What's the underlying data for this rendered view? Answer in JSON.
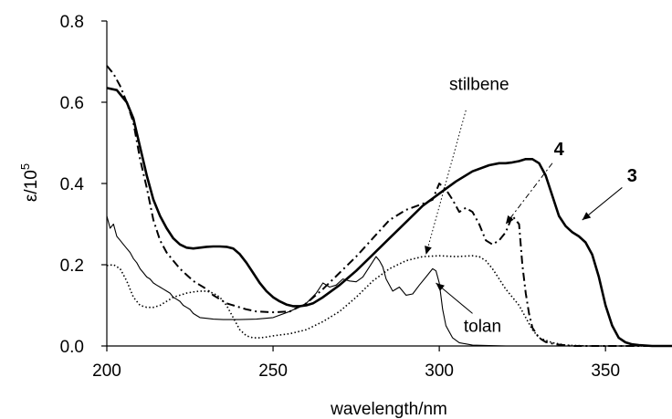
{
  "chart_data": {
    "type": "line",
    "title": "",
    "xlabel": "wavelength/nm",
    "ylabel": "ε/10",
    "ylabel_sup": "5",
    "xlim": [
      200,
      370
    ],
    "ylim": [
      0,
      0.8
    ],
    "xticks": [
      200,
      250,
      300,
      350
    ],
    "yticks": [
      0.0,
      0.2,
      0.4,
      0.6,
      0.8
    ],
    "xtick_labels": [
      "200",
      "250",
      "300",
      "350"
    ],
    "ytick_labels": [
      "0.0",
      "0.2",
      "0.4",
      "0.6",
      "0.8"
    ],
    "grid": false,
    "legend": "none (series labelled by direct annotations)",
    "series": [
      {
        "name": "3",
        "style": "solid-thick",
        "x": [
          200,
          203,
          206,
          208,
          210,
          212,
          214,
          216,
          218,
          220,
          222,
          224,
          226,
          228,
          230,
          232,
          234,
          236,
          238,
          240,
          242,
          244,
          246,
          248,
          250,
          252,
          254,
          256,
          258,
          260,
          262,
          265,
          270,
          275,
          280,
          285,
          290,
          295,
          300,
          305,
          310,
          315,
          318,
          320,
          322,
          324,
          326,
          328,
          330,
          332,
          334,
          336,
          338,
          340,
          342,
          344,
          346,
          348,
          350,
          352,
          354,
          356,
          358,
          360,
          364,
          370
        ],
        "y": [
          0.635,
          0.63,
          0.6,
          0.56,
          0.49,
          0.42,
          0.36,
          0.32,
          0.29,
          0.265,
          0.25,
          0.242,
          0.24,
          0.242,
          0.244,
          0.245,
          0.245,
          0.244,
          0.24,
          0.226,
          0.205,
          0.18,
          0.155,
          0.135,
          0.12,
          0.11,
          0.102,
          0.098,
          0.098,
          0.1,
          0.105,
          0.12,
          0.15,
          0.185,
          0.225,
          0.265,
          0.305,
          0.345,
          0.375,
          0.405,
          0.43,
          0.445,
          0.45,
          0.45,
          0.452,
          0.455,
          0.46,
          0.46,
          0.45,
          0.42,
          0.37,
          0.32,
          0.295,
          0.28,
          0.27,
          0.255,
          0.225,
          0.17,
          0.1,
          0.05,
          0.02,
          0.009,
          0.004,
          0.002,
          0.0,
          0.0
        ]
      },
      {
        "name": "4",
        "style": "dash-dot",
        "x": [
          200,
          202,
          204,
          206,
          208,
          210,
          212,
          214,
          216,
          218,
          220,
          222,
          224,
          226,
          228,
          230,
          232,
          234,
          236,
          238,
          240,
          242,
          245,
          250,
          255,
          260,
          265,
          270,
          275,
          280,
          285,
          290,
          295,
          298,
          300,
          302,
          304,
          306,
          308,
          310,
          312,
          314,
          316,
          318,
          320,
          322,
          324,
          325,
          326,
          327,
          328,
          330,
          332,
          335,
          340,
          350,
          370
        ],
        "y": [
          0.69,
          0.67,
          0.64,
          0.6,
          0.55,
          0.46,
          0.39,
          0.31,
          0.26,
          0.23,
          0.21,
          0.19,
          0.175,
          0.16,
          0.15,
          0.14,
          0.125,
          0.115,
          0.105,
          0.1,
          0.095,
          0.09,
          0.085,
          0.083,
          0.085,
          0.105,
          0.14,
          0.18,
          0.22,
          0.265,
          0.31,
          0.335,
          0.35,
          0.36,
          0.4,
          0.385,
          0.36,
          0.33,
          0.34,
          0.33,
          0.3,
          0.26,
          0.25,
          0.26,
          0.28,
          0.32,
          0.3,
          0.2,
          0.13,
          0.08,
          0.045,
          0.02,
          0.01,
          0.004,
          0.0,
          0.0,
          0.0
        ]
      },
      {
        "name": "stilbene",
        "style": "dotted",
        "x": [
          200,
          202,
          204,
          206,
          208,
          210,
          212,
          214,
          216,
          218,
          220,
          222,
          224,
          226,
          228,
          230,
          232,
          234,
          236,
          238,
          240,
          242,
          244,
          246,
          248,
          250,
          255,
          260,
          265,
          270,
          275,
          280,
          285,
          290,
          295,
          300,
          305,
          310,
          312,
          314,
          316,
          318,
          320,
          322,
          324,
          326,
          328,
          330,
          334,
          338,
          345,
          370
        ],
        "y": [
          0.198,
          0.2,
          0.19,
          0.16,
          0.12,
          0.1,
          0.095,
          0.095,
          0.1,
          0.11,
          0.12,
          0.125,
          0.13,
          0.133,
          0.135,
          0.135,
          0.13,
          0.12,
          0.1,
          0.07,
          0.04,
          0.025,
          0.02,
          0.02,
          0.022,
          0.025,
          0.03,
          0.04,
          0.06,
          0.085,
          0.12,
          0.16,
          0.19,
          0.21,
          0.22,
          0.222,
          0.22,
          0.222,
          0.22,
          0.21,
          0.19,
          0.165,
          0.14,
          0.12,
          0.1,
          0.07,
          0.04,
          0.02,
          0.008,
          0.002,
          0.0,
          0.0
        ]
      },
      {
        "name": "tolan",
        "style": "solid-thin",
        "x": [
          200,
          201,
          202,
          203,
          204,
          205,
          206,
          207,
          208,
          209,
          210,
          211,
          212,
          213,
          214,
          215,
          216,
          217,
          218,
          219,
          220,
          221,
          222,
          223,
          224,
          225,
          226,
          227,
          228,
          230,
          232,
          235,
          240,
          245,
          250,
          255,
          260,
          263,
          265,
          267,
          269,
          271,
          273,
          275,
          277,
          279,
          281,
          282,
          283,
          284,
          286,
          288,
          290,
          292,
          294,
          296,
          298,
          299,
          300,
          301,
          302,
          304,
          306,
          310,
          320,
          370
        ],
        "y": [
          0.32,
          0.29,
          0.3,
          0.27,
          0.26,
          0.25,
          0.24,
          0.23,
          0.215,
          0.205,
          0.19,
          0.18,
          0.17,
          0.165,
          0.155,
          0.15,
          0.145,
          0.14,
          0.135,
          0.13,
          0.12,
          0.115,
          0.11,
          0.1,
          0.095,
          0.09,
          0.08,
          0.075,
          0.07,
          0.068,
          0.066,
          0.065,
          0.065,
          0.066,
          0.07,
          0.085,
          0.105,
          0.13,
          0.155,
          0.145,
          0.15,
          0.165,
          0.16,
          0.158,
          0.17,
          0.195,
          0.22,
          0.21,
          0.195,
          0.165,
          0.135,
          0.145,
          0.125,
          0.128,
          0.15,
          0.17,
          0.19,
          0.185,
          0.155,
          0.09,
          0.05,
          0.02,
          0.008,
          0.002,
          0.0,
          0.0
        ]
      }
    ],
    "annotations": [
      {
        "text": "stilbene",
        "bold": false,
        "x": 312,
        "y": 0.63,
        "arrow_from": [
          308,
          0.58
        ],
        "arrow_to": [
          296,
          0.225
        ]
      },
      {
        "text": "4",
        "bold": true,
        "x": 336,
        "y": 0.47,
        "arrow_from": [
          334,
          0.45
        ],
        "arrow_to": [
          320,
          0.3
        ]
      },
      {
        "text": "3",
        "bold": true,
        "x": 358,
        "y": 0.405,
        "arrow_from": [
          355,
          0.39
        ],
        "arrow_to": [
          343,
          0.31
        ]
      },
      {
        "text": "tolan",
        "bold": false,
        "x": 313,
        "y": 0.035,
        "arrow_from": [
          310,
          0.08
        ],
        "arrow_to": [
          299,
          0.155
        ]
      }
    ]
  }
}
